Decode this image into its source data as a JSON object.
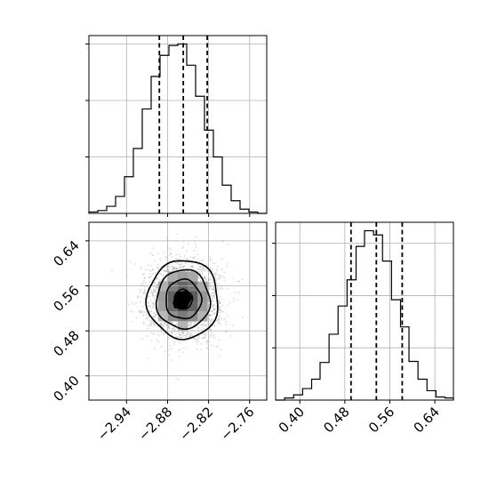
{
  "chart_data": {
    "type": "corner",
    "parameters": [
      {
        "xlim": [
          -2.995,
          -2.735
        ],
        "ticks": [
          -2.94,
          -2.88,
          -2.82,
          -2.76
        ],
        "tick_labels": [
          "−2.94",
          "−2.88",
          "−2.82",
          "−2.76"
        ],
        "quantiles": [
          -2.892,
          -2.857,
          -2.822
        ],
        "hist": {
          "bin_edges": [
            -2.995,
            -2.982,
            -2.969,
            -2.956,
            -2.943,
            -2.93,
            -2.917,
            -2.904,
            -2.891,
            -2.878,
            -2.865,
            -2.852,
            -2.839,
            -2.826,
            -2.813,
            -2.8,
            -2.787,
            -2.774,
            -2.761,
            -2.748,
            -2.735
          ],
          "counts": [
            1,
            2,
            5,
            12,
            26,
            46,
            74,
            97,
            112,
            119,
            120,
            105,
            83,
            59,
            40,
            20,
            9,
            3,
            1,
            0
          ]
        }
      },
      {
        "xlim": [
          0.357,
          0.673
        ],
        "ticks": [
          0.4,
          0.48,
          0.56,
          0.64
        ],
        "tick_labels": [
          "0.40",
          "0.48",
          "0.56",
          "0.64"
        ],
        "quantiles": [
          0.491,
          0.536,
          0.582
        ],
        "hist": {
          "bin_edges": [
            0.357,
            0.373,
            0.389,
            0.405,
            0.421,
            0.436,
            0.452,
            0.468,
            0.484,
            0.5,
            0.515,
            0.531,
            0.547,
            0.563,
            0.579,
            0.594,
            0.61,
            0.626,
            0.642,
            0.658,
            0.673
          ],
          "counts": [
            0,
            2,
            5,
            11,
            20,
            36,
            63,
            90,
            115,
            147,
            162,
            158,
            133,
            96,
            70,
            37,
            20,
            9,
            3,
            2
          ]
        }
      }
    ],
    "scatter_2d": {
      "xlim": [
        -2.995,
        -2.735
      ],
      "ylim": [
        0.357,
        0.673
      ],
      "center": [
        -2.857,
        0.536
      ],
      "sigma": [
        0.026,
        0.035
      ],
      "levels_sigma": [
        0.5,
        1.0,
        1.5,
        2.0
      ],
      "grid": true
    },
    "grid": true
  }
}
